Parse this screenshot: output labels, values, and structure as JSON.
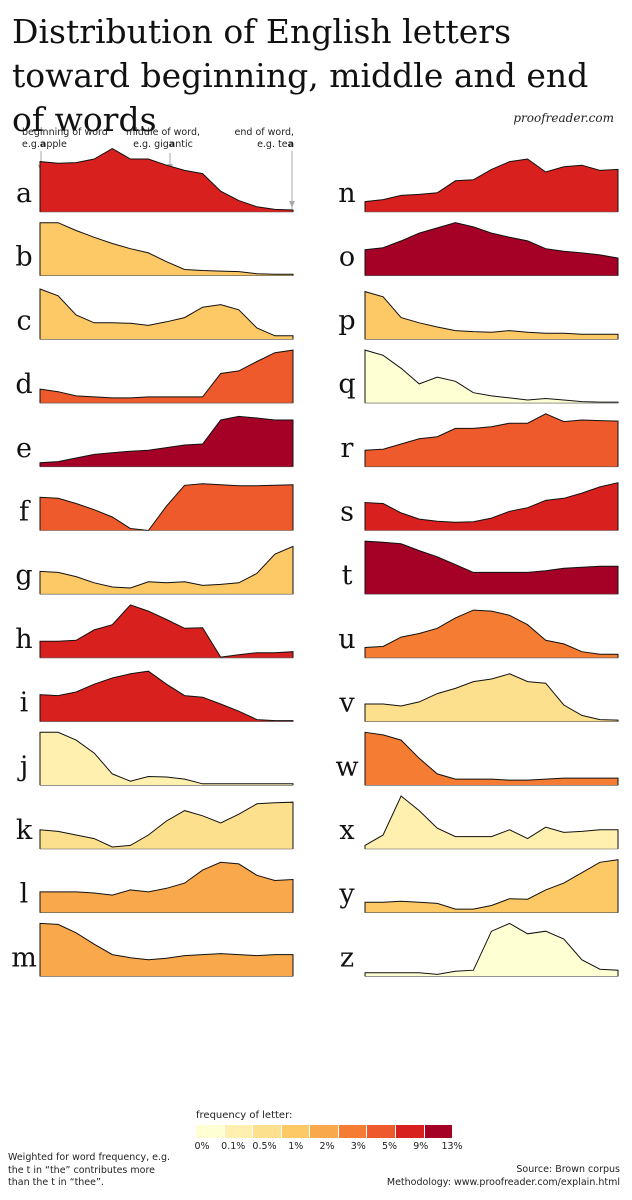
{
  "title": "Distribution of English letters toward beginning, middle and end of words",
  "site": "proofreader.com",
  "annotations": {
    "beginning_line1": "beginning of word",
    "beginning_prefix": "e.g.",
    "beginning_bold": "a",
    "beginning_suffix": "pple",
    "middle_line1": "middle of word,",
    "middle_prefix": "e.g. gig",
    "middle_bold": "a",
    "middle_suffix": "ntic",
    "end_line1": "end of word,",
    "end_prefix": "e.g. te",
    "end_bold": "a"
  },
  "legend": {
    "title": "frequency of letter:",
    "colors": [
      "#ffffd4",
      "#fff0b0",
      "#fde08e",
      "#fdc866",
      "#f9a94b",
      "#f47c33",
      "#ee5a2c",
      "#d8211e",
      "#a50026"
    ],
    "ticks": [
      "0%",
      "0.1%",
      "0.5%",
      "1%",
      "2%",
      "3%",
      "5%",
      "9%",
      "13%"
    ]
  },
  "note": "Weighted for word frequency, e.g. the t in “the” contributes more than the t in “thee”.",
  "source": "Source: Brown corpus",
  "methodology": "Methodology: www.proofreader.com/explain.html",
  "chart_data": {
    "type": "area",
    "x": [
      0,
      1,
      2,
      3,
      4,
      5,
      6,
      7,
      8,
      9,
      10,
      11,
      12,
      13,
      14
    ],
    "x_meaning": "position in word, from beginning (left) to end (right)",
    "letters": [
      {
        "letter": "a",
        "color": "#d8211e",
        "values": [
          0.95,
          0.92,
          0.93,
          1.0,
          1.2,
          1.0,
          1.0,
          0.88,
          0.78,
          0.72,
          0.38,
          0.2,
          0.08,
          0.03,
          0.02
        ]
      },
      {
        "letter": "b",
        "color": "#fdc866",
        "values": [
          1.0,
          1.0,
          0.85,
          0.72,
          0.6,
          0.5,
          0.42,
          0.25,
          0.1,
          0.08,
          0.07,
          0.06,
          0.02,
          0.01,
          0.01
        ]
      },
      {
        "letter": "c",
        "color": "#fdc866",
        "values": [
          0.95,
          0.82,
          0.45,
          0.3,
          0.3,
          0.29,
          0.25,
          0.32,
          0.4,
          0.6,
          0.65,
          0.55,
          0.2,
          0.05,
          0.05
        ]
      },
      {
        "letter": "d",
        "color": "#ee5a2c",
        "values": [
          0.25,
          0.2,
          0.12,
          0.1,
          0.08,
          0.08,
          0.1,
          0.1,
          0.1,
          0.1,
          0.55,
          0.6,
          0.78,
          0.95,
          1.0
        ]
      },
      {
        "letter": "e",
        "color": "#a50026",
        "values": [
          0.06,
          0.08,
          0.15,
          0.22,
          0.25,
          0.28,
          0.3,
          0.35,
          0.4,
          0.42,
          0.88,
          0.95,
          0.92,
          0.88,
          0.88
        ]
      },
      {
        "letter": "f",
        "color": "#ee5a2c",
        "values": [
          0.62,
          0.6,
          0.5,
          0.38,
          0.24,
          0.02,
          -0.1,
          0.45,
          0.85,
          0.88,
          0.86,
          0.84,
          0.84,
          0.85,
          0.86
        ]
      },
      {
        "letter": "g",
        "color": "#fdc866",
        "values": [
          0.42,
          0.4,
          0.32,
          0.2,
          0.12,
          0.1,
          0.22,
          0.2,
          0.22,
          0.15,
          0.17,
          0.2,
          0.38,
          0.75,
          0.9
        ]
      },
      {
        "letter": "h",
        "color": "#d8211e",
        "values": [
          0.3,
          0.3,
          0.32,
          0.52,
          0.62,
          1.0,
          0.88,
          0.72,
          0.55,
          0.56,
          -0.02,
          0.04,
          0.08,
          0.08,
          0.1
        ]
      },
      {
        "letter": "i",
        "color": "#d8211e",
        "values": [
          0.5,
          0.48,
          0.55,
          0.7,
          0.82,
          0.9,
          0.95,
          0.7,
          0.48,
          0.45,
          0.32,
          0.18,
          0.02,
          0.0,
          0.0
        ]
      },
      {
        "letter": "j",
        "color": "#fff0b0",
        "values": [
          1.0,
          1.0,
          0.85,
          0.6,
          0.2,
          0.06,
          0.15,
          0.14,
          0.1,
          0.01,
          0.01,
          0.01,
          0.01,
          0.01,
          0.01
        ]
      },
      {
        "letter": "k",
        "color": "#fde08e",
        "values": [
          0.35,
          0.32,
          0.25,
          0.18,
          0.02,
          0.05,
          0.25,
          0.52,
          0.72,
          0.62,
          0.48,
          0.65,
          0.85,
          0.87,
          0.88
        ]
      },
      {
        "letter": "l",
        "color": "#f9a94b",
        "values": [
          0.38,
          0.38,
          0.38,
          0.36,
          0.32,
          0.42,
          0.38,
          0.45,
          0.55,
          0.8,
          0.95,
          0.92,
          0.7,
          0.6,
          0.62
        ]
      },
      {
        "letter": "m",
        "color": "#f9a94b",
        "values": [
          1.0,
          0.98,
          0.82,
          0.6,
          0.4,
          0.34,
          0.3,
          0.33,
          0.38,
          0.4,
          0.42,
          0.4,
          0.38,
          0.4,
          0.4
        ]
      },
      {
        "letter": "n",
        "color": "#d8211e",
        "values": [
          0.18,
          0.22,
          0.3,
          0.32,
          0.35,
          0.58,
          0.6,
          0.8,
          0.95,
          1.0,
          0.75,
          0.85,
          0.88,
          0.78,
          0.8
        ]
      },
      {
        "letter": "o",
        "color": "#a50026",
        "values": [
          0.48,
          0.52,
          0.65,
          0.8,
          0.9,
          1.0,
          0.92,
          0.8,
          0.72,
          0.65,
          0.5,
          0.45,
          0.42,
          0.38,
          0.32
        ]
      },
      {
        "letter": "p",
        "color": "#fdc866",
        "values": [
          0.9,
          0.8,
          0.4,
          0.3,
          0.22,
          0.15,
          0.13,
          0.12,
          0.15,
          0.12,
          0.1,
          0.1,
          0.08,
          0.08,
          0.08
        ]
      },
      {
        "letter": "q",
        "color": "#ffffd4",
        "values": [
          1.0,
          0.9,
          0.65,
          0.35,
          0.48,
          0.4,
          0.18,
          0.12,
          0.08,
          0.04,
          0.07,
          0.04,
          0.01,
          0.0,
          0.0
        ]
      },
      {
        "letter": "r",
        "color": "#ee5a2c",
        "values": [
          0.3,
          0.32,
          0.42,
          0.52,
          0.56,
          0.72,
          0.72,
          0.75,
          0.82,
          0.82,
          1.0,
          0.85,
          0.88,
          0.87,
          0.86
        ]
      },
      {
        "letter": "s",
        "color": "#d8211e",
        "values": [
          0.52,
          0.5,
          0.32,
          0.2,
          0.16,
          0.14,
          0.15,
          0.22,
          0.35,
          0.42,
          0.56,
          0.6,
          0.7,
          0.82,
          0.9
        ]
      },
      {
        "letter": "t",
        "color": "#a50026",
        "values": [
          1.0,
          0.98,
          0.95,
          0.82,
          0.7,
          0.55,
          0.4,
          0.4,
          0.4,
          0.4,
          0.43,
          0.48,
          0.5,
          0.52,
          0.52
        ]
      },
      {
        "letter": "u",
        "color": "#f47c33",
        "values": [
          0.18,
          0.2,
          0.38,
          0.45,
          0.55,
          0.75,
          0.9,
          0.88,
          0.8,
          0.62,
          0.32,
          0.25,
          0.1,
          0.05,
          0.05
        ]
      },
      {
        "letter": "v",
        "color": "#fde08e",
        "values": [
          0.32,
          0.32,
          0.28,
          0.36,
          0.52,
          0.62,
          0.75,
          0.8,
          0.9,
          0.75,
          0.72,
          0.3,
          0.1,
          0.02,
          0.01
        ]
      },
      {
        "letter": "w",
        "color": "#f47c33",
        "values": [
          1.0,
          0.95,
          0.85,
          0.5,
          0.2,
          0.1,
          0.1,
          0.1,
          0.08,
          0.08,
          0.1,
          0.12,
          0.12,
          0.12,
          0.12
        ]
      },
      {
        "letter": "x",
        "color": "#fff0b0",
        "values": [
          0.05,
          0.25,
          1.0,
          0.72,
          0.38,
          0.22,
          0.22,
          0.22,
          0.35,
          0.18,
          0.4,
          0.3,
          0.32,
          0.35,
          0.35
        ]
      },
      {
        "letter": "y",
        "color": "#fdc866",
        "values": [
          0.18,
          0.18,
          0.2,
          0.18,
          0.16,
          0.05,
          0.05,
          0.12,
          0.25,
          0.24,
          0.42,
          0.55,
          0.75,
          0.95,
          1.0
        ]
      },
      {
        "letter": "z",
        "color": "#ffffd4",
        "values": [
          0.05,
          0.05,
          0.05,
          0.05,
          0.02,
          0.08,
          0.1,
          0.85,
          1.0,
          0.8,
          0.85,
          0.7,
          0.3,
          0.12,
          0.1
        ]
      }
    ]
  }
}
